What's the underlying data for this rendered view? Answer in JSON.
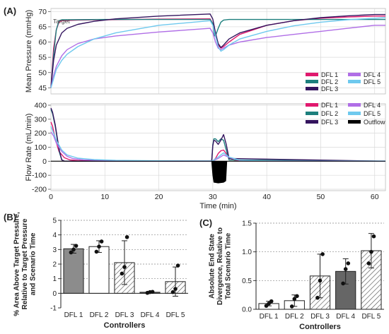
{
  "panels": {
    "a": "(A)",
    "b": "(B)",
    "c": "(C)"
  },
  "colors": {
    "DFL 1": "#e0196e",
    "DFL 2": "#1d7f7d",
    "DFL 3": "#34145e",
    "DFL 4": "#b06ee6",
    "DFL 5": "#6ec9ee",
    "Outflow": "#000000",
    "grid": "#d9d9d9",
    "bar_dark": "#8c8c8c",
    "bar_darker": "#666666"
  },
  "chart_data": [
    {
      "id": "pressure",
      "type": "line",
      "ylabel": "Mean Pressure (mmHg)",
      "xlabel": "",
      "xlim": [
        0,
        62
      ],
      "ylim": [
        43,
        71
      ],
      "yticks": [
        45,
        50,
        55,
        60,
        65,
        70
      ],
      "xticks": [
        0,
        10,
        20,
        30,
        40,
        50,
        60
      ],
      "grid": true,
      "annotation": "Target",
      "annotation_value": 67,
      "legend": "bottom-right",
      "legend_entries": [
        "DFL 1",
        "DFL 2",
        "DFL 3",
        "DFL 4",
        "DFL 5"
      ],
      "series": [
        {
          "name": "DFL 1",
          "x": [
            0,
            0.5,
            1,
            1.5,
            2,
            5,
            10,
            20,
            29.5,
            30,
            30.5,
            31,
            31.5,
            32,
            33,
            35,
            40,
            45,
            50,
            55,
            60,
            62
          ],
          "y": [
            45,
            58,
            64,
            66.5,
            67,
            67.2,
            67.3,
            67.5,
            67.6,
            66,
            62,
            59,
            58,
            58.5,
            60,
            62.5,
            65.5,
            67,
            67.8,
            68.2,
            68.5,
            68.5
          ]
        },
        {
          "name": "DFL 2",
          "x": [
            0,
            0.5,
            1,
            1.5,
            2,
            3,
            10,
            20,
            29.5,
            30,
            30.3,
            30.6,
            31,
            31.5,
            32,
            33,
            35,
            40,
            50,
            62
          ],
          "y": [
            45,
            56,
            64,
            67,
            67.3,
            67.3,
            67.4,
            67.4,
            67.4,
            66,
            62,
            62.5,
            64.5,
            66.5,
            67.2,
            67.4,
            67.4,
            67.4,
            67.4,
            67.4
          ]
        },
        {
          "name": "DFL 3",
          "x": [
            0,
            0.5,
            1,
            2,
            3,
            5,
            8,
            12,
            20,
            29.5,
            30,
            30.5,
            31,
            31.5,
            32,
            33,
            35,
            40,
            45,
            50,
            55,
            60,
            62
          ],
          "y": [
            45,
            54,
            59,
            63,
            64.5,
            65.8,
            66.8,
            67.6,
            68.5,
            69.2,
            67.5,
            63,
            59.5,
            58.2,
            59,
            61,
            63,
            65.5,
            67,
            68,
            68.6,
            69,
            69
          ]
        },
        {
          "name": "DFL 4",
          "x": [
            0,
            0.5,
            1,
            2,
            3,
            5,
            8,
            12,
            20,
            29.5,
            30,
            30.5,
            31,
            31.5,
            32,
            33,
            35,
            40,
            45,
            50,
            55,
            60,
            62
          ],
          "y": [
            45,
            49,
            52,
            55.5,
            57.5,
            59.5,
            61,
            62,
            63.3,
            64.5,
            63,
            60,
            58,
            57.5,
            58,
            59,
            60,
            61.5,
            62.5,
            63.5,
            64.5,
            65.5,
            65.5
          ]
        },
        {
          "name": "DFL 5",
          "x": [
            0,
            0.5,
            1,
            2,
            3,
            5,
            8,
            12,
            20,
            29.5,
            30,
            30.5,
            31,
            31.5,
            32,
            33,
            35,
            40,
            45,
            50,
            55,
            60,
            62
          ],
          "y": [
            45,
            48,
            51,
            54,
            56,
            58.5,
            61,
            63,
            65.5,
            67,
            65.5,
            62,
            58.5,
            57,
            57.5,
            59,
            61,
            63.5,
            65.3,
            66.5,
            67.3,
            67.8,
            68
          ]
        }
      ]
    },
    {
      "id": "flow",
      "type": "line",
      "ylabel": "Flow Rate (mL/min)",
      "xlabel": "Time (min)",
      "xlim": [
        0,
        62
      ],
      "ylim": [
        -210,
        410
      ],
      "yticks": [
        -200,
        -100,
        0,
        100,
        200,
        300,
        400
      ],
      "xticks": [
        0,
        10,
        20,
        30,
        40,
        50,
        60
      ],
      "grid": true,
      "legend": "top-right",
      "legend_entries": [
        "DFL 1",
        "DFL 2",
        "DFL 3",
        "DFL 4",
        "DFL 5",
        "Outflow"
      ],
      "series": [
        {
          "name": "DFL 1",
          "x": [
            0,
            0.3,
            0.8,
            1.5,
            2.5,
            3.5,
            5,
            10,
            29.5,
            30,
            30.5,
            31,
            31.5,
            32,
            32.5,
            33,
            34,
            36,
            62
          ],
          "y": [
            280,
            250,
            160,
            70,
            25,
            10,
            5,
            3,
            0,
            0,
            20,
            55,
            75,
            80,
            55,
            25,
            8,
            2,
            0
          ]
        },
        {
          "name": "DFL 2",
          "x": [
            0,
            0.3,
            0.8,
            1.2,
            1.6,
            2,
            2.5,
            29.8,
            30,
            30.2,
            30.5,
            31,
            31.5,
            32,
            32.5,
            33,
            62
          ],
          "y": [
            370,
            340,
            250,
            150,
            60,
            10,
            0,
            0,
            120,
            160,
            160,
            140,
            160,
            150,
            80,
            10,
            0
          ]
        },
        {
          "name": "DFL 3",
          "x": [
            0,
            0.3,
            0.8,
            1.2,
            1.6,
            2,
            2.5,
            29.8,
            30,
            30.2,
            30.5,
            31,
            31.5,
            32,
            32.5,
            33,
            62
          ],
          "y": [
            380,
            350,
            260,
            160,
            70,
            10,
            0,
            0,
            110,
            150,
            145,
            120,
            150,
            190,
            120,
            20,
            0
          ]
        },
        {
          "name": "DFL 4",
          "x": [
            0,
            0.5,
            1,
            2,
            3,
            4,
            6,
            10,
            15,
            20,
            29.5,
            30,
            31,
            32,
            33,
            35,
            40,
            62
          ],
          "y": [
            210,
            180,
            130,
            70,
            35,
            20,
            10,
            5,
            3,
            2,
            2,
            2,
            20,
            45,
            28,
            6,
            2,
            1
          ]
        },
        {
          "name": "DFL 5",
          "x": [
            0,
            0.5,
            1,
            2,
            3,
            5,
            8,
            12,
            20,
            29.5,
            30,
            31,
            32,
            33,
            35,
            40,
            62
          ],
          "y": [
            250,
            200,
            150,
            80,
            45,
            22,
            12,
            6,
            3,
            2,
            3,
            30,
            60,
            30,
            8,
            2,
            1
          ]
        },
        {
          "name": "Outflow",
          "x": [
            0,
            29.8,
            30,
            30.2,
            31,
            32,
            32.4,
            32.6,
            62
          ],
          "y": [
            0,
            0,
            -100,
            -150,
            -155,
            -150,
            -140,
            0,
            0
          ]
        }
      ]
    },
    {
      "id": "area",
      "type": "bar",
      "ylabel": "% Area Above Target Pressure, Relative to Target Pressure and Scenario Time",
      "ylabel_lines": [
        "% Area Above Target Pressure,",
        "Relative to Target Pressure",
        "and Scenario Time"
      ],
      "xlabel": "Controllers",
      "categories": [
        "DFL 1",
        "DFL 2",
        "DFL 3",
        "DFL 4",
        "DFL 5"
      ],
      "values": [
        3.05,
        3.2,
        2.1,
        0.07,
        0.8
      ],
      "errors": [
        0.3,
        0.4,
        1.5,
        0.05,
        1.0
      ],
      "points": [
        [
          2.8,
          3.0,
          3.25
        ],
        [
          2.85,
          3.2,
          3.55
        ],
        [
          1.35,
          1.8,
          3.85
        ],
        [
          0.03,
          0.08,
          0.1
        ],
        [
          0.08,
          0.3,
          1.9
        ]
      ],
      "fills": [
        "solid-gray",
        "white",
        "hatch",
        "dark",
        "hatch"
      ],
      "ylim": [
        -1,
        5
      ],
      "yticks": [
        -1,
        0,
        1,
        2,
        3,
        4,
        5
      ],
      "grid": true
    },
    {
      "id": "divergence",
      "type": "bar",
      "ylabel": "Absolute End State Divergence, Relative to Total Scenario Time",
      "ylabel_lines": [
        "Absolute End State",
        "Divergence, Relative to",
        "Total Scenario Time"
      ],
      "xlabel": "Controllers",
      "categories": [
        "DFL 1",
        "DFL 2",
        "DFL 3",
        "DFL 4",
        "DFL 5"
      ],
      "values": [
        0.1,
        0.15,
        0.58,
        0.66,
        1.02
      ],
      "errors": [
        0.04,
        0.1,
        0.38,
        0.22,
        0.3
      ],
      "points": [
        [
          0.06,
          0.1,
          0.14
        ],
        [
          0.05,
          0.18,
          0.23
        ],
        [
          0.2,
          0.5,
          0.96
        ],
        [
          0.45,
          0.7,
          0.8
        ],
        [
          0.8,
          1.0,
          1.27
        ]
      ],
      "fills": [
        "white",
        "white",
        "hatch",
        "dark",
        "hatch"
      ],
      "ylim": [
        0,
        1.5
      ],
      "yticks": [
        0.0,
        0.5,
        1.0,
        1.5
      ],
      "grid": true
    }
  ]
}
